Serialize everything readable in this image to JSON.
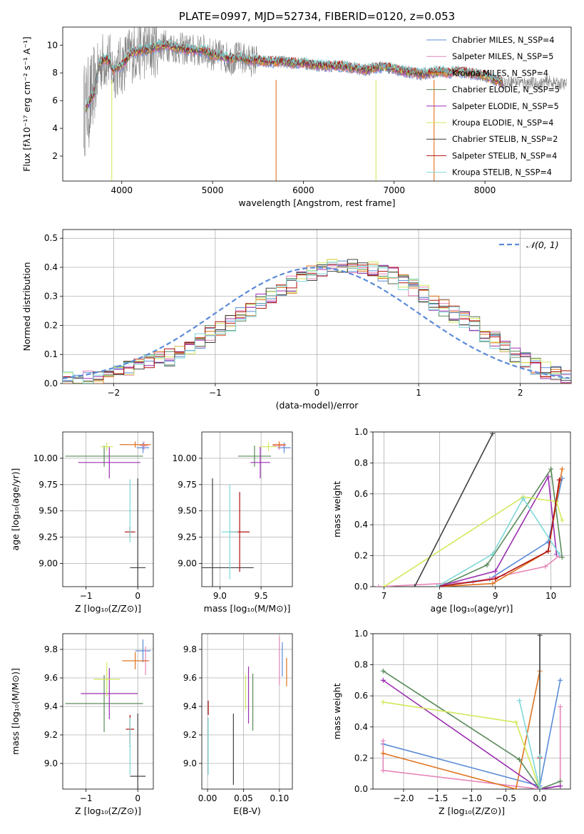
{
  "colors": {
    "chabrier_miles": "#5b8bd8",
    "salpeter_miles": "#e585b8",
    "kroupa_miles": "#e0731f",
    "chabrier_elodie": "#5a8a5a",
    "salpeter_elodie": "#9b2fb0",
    "kroupa_elodie": "#d3e85a",
    "chabrier_stelib": "#404040",
    "salpeter_stelib": "#b01010",
    "kroupa_stelib": "#7fd8d8",
    "raw_spectrum": "#808080",
    "normal_curve": "#5b8bd8"
  },
  "chart_data": [
    {
      "panel": "spectrum",
      "type": "line",
      "title": "PLATE=0997, MJD=52734, FIBERID=0120, z=0.053",
      "xlabel": "wavelength [Angstrom, rest frame]",
      "ylabel": "Flux [fλ10⁻¹⁷ erg cm⁻² s⁻¹ A⁻¹]",
      "xlim": [
        3350,
        8950
      ],
      "ylim": [
        0.2,
        11.3
      ],
      "xticks": [
        "4000",
        "5000",
        "6000",
        "7000",
        "8000"
      ],
      "yticks": [
        "2",
        "4",
        "6",
        "8",
        "10"
      ],
      "legend_position": "top-right",
      "legend": [
        "Chabrier MILES, N_SSP=4",
        "Salpeter MILES, N_SSP=5",
        "Kroupa MILES, N_SSP=4",
        "Chabrier ELODIE, N_SSP=5",
        "Salpeter ELODIE, N_SSP=5",
        "Kroupa ELODIE, N_SSP=4",
        "Chabrier STELIB, N_SSP=2",
        "Salpeter STELIB, N_SSP=4",
        "Kroupa STELIB, N_SSP=4"
      ],
      "model_x": [
        3600,
        3650,
        3700,
        3750,
        3800,
        3850,
        3900,
        4000,
        4100,
        4200,
        4300,
        4400,
        4500,
        4600,
        4700,
        4800,
        4900,
        5000,
        5100,
        5200,
        5300,
        5400,
        5500,
        5600,
        5700,
        5800,
        5900,
        6000,
        6100,
        6200,
        6300,
        6400,
        6500,
        6600,
        6700,
        6800,
        6900,
        7000,
        7100,
        7200,
        7300,
        7400,
        7500,
        7600,
        7700,
        7800,
        7900,
        8000,
        8100,
        8200,
        8300,
        8400,
        8500,
        8600,
        8700,
        8800
      ],
      "model_y": [
        5.4,
        6.0,
        6.6,
        8.6,
        8.9,
        9.0,
        8.2,
        8.5,
        9.4,
        9.6,
        9.7,
        9.9,
        10.0,
        9.8,
        9.7,
        9.6,
        9.6,
        9.3,
        9.2,
        9.0,
        9.1,
        8.9,
        8.9,
        8.8,
        8.8,
        8.8,
        8.7,
        8.7,
        8.6,
        8.5,
        8.5,
        8.5,
        8.4,
        8.3,
        8.2,
        8.4,
        8.4,
        8.3,
        8.1,
        8.0,
        7.9,
        8.0,
        8.1,
        8.0,
        8.1,
        8.0,
        7.9,
        7.8,
        7.5,
        7.3,
        7.4,
        7.3,
        7.3,
        7.2,
        7.4,
        7.2
      ]
    },
    {
      "panel": "residual-histogram",
      "type": "line",
      "xlabel": "(data-model)/error",
      "ylabel": "Normed distribution",
      "xlim": [
        -2.5,
        2.5
      ],
      "ylim": [
        0,
        0.53
      ],
      "xticks": [
        "−2",
        "−1",
        "0",
        "1",
        "2"
      ],
      "yticks": [
        "0.0",
        "0.1",
        "0.2",
        "0.3",
        "0.4",
        "0.5"
      ],
      "legend_position": "top-right",
      "legend": [
        "𝒩(0, 1)"
      ],
      "bin_width": 0.1,
      "bin_start": -2.5,
      "mean_histogram": [
        0.01,
        0.01,
        0.015,
        0.02,
        0.03,
        0.04,
        0.05,
        0.06,
        0.07,
        0.08,
        0.09,
        0.11,
        0.13,
        0.15,
        0.17,
        0.19,
        0.21,
        0.24,
        0.26,
        0.28,
        0.3,
        0.32,
        0.34,
        0.36,
        0.38,
        0.4,
        0.4,
        0.41,
        0.41,
        0.4,
        0.39,
        0.38,
        0.37,
        0.35,
        0.33,
        0.31,
        0.28,
        0.26,
        0.24,
        0.22,
        0.2,
        0.17,
        0.15,
        0.12,
        0.1,
        0.08,
        0.06,
        0.045,
        0.035,
        0.025
      ]
    },
    {
      "panel": "z-vs-age",
      "type": "scatter",
      "xlabel": "Z [log₁₀(Z/Z⊙)]",
      "ylabel": "age  [log₁₀(age/yr)]",
      "xlim": [
        -1.45,
        0.3
      ],
      "ylim": [
        8.78,
        10.25
      ],
      "xticks": [
        "−1",
        "0"
      ],
      "yticks": [
        "9.00",
        "9.25",
        "9.50",
        "9.75",
        "10.00"
      ],
      "points": [
        {
          "model": "chabrier_miles",
          "x": 0.1,
          "y": 10.1,
          "xerr": 0.12,
          "yerr": 0.05
        },
        {
          "model": "salpeter_miles",
          "x": 0.12,
          "y": 10.12,
          "xerr": 0.08,
          "yerr": 0.04
        },
        {
          "model": "kroupa_miles",
          "x": -0.05,
          "y": 10.13,
          "xerr": 0.3,
          "yerr": 0.03
        },
        {
          "model": "chabrier_elodie",
          "x": -0.65,
          "y": 10.02,
          "xerr": 0.75,
          "yerr": 0.1
        },
        {
          "model": "salpeter_elodie",
          "x": -0.55,
          "y": 9.96,
          "xerr": 0.6,
          "yerr": 0.15
        },
        {
          "model": "kroupa_elodie",
          "x": -0.6,
          "y": 10.11,
          "xerr": 0.12,
          "yerr": 0.04
        },
        {
          "model": "chabrier_stelib",
          "x": 0.0,
          "y": 8.96,
          "xerr": 0.15,
          "yerr": 0.85
        },
        {
          "model": "salpeter_stelib",
          "x": -0.15,
          "y": 9.3,
          "xerr": 0.1,
          "yerr": 0.05
        },
        {
          "model": "kroupa_stelib",
          "x": -0.15,
          "y": 9.5,
          "xerr": 0.02,
          "yerr": 0.3
        }
      ]
    },
    {
      "panel": "mass-vs-age",
      "type": "scatter",
      "xlabel": "mass [log₁₀(M/M⊙)]",
      "ylabel": "",
      "xlim": [
        8.78,
        9.88
      ],
      "ylim": [
        8.78,
        10.25
      ],
      "xticks": [
        "9.0",
        "9.5"
      ],
      "yticks": [
        "9.00",
        "9.25",
        "9.50",
        "9.75",
        "10.00"
      ],
      "points": [
        {
          "model": "chabrier_miles",
          "x": 9.78,
          "y": 10.1,
          "xerr": 0.08,
          "yerr": 0.05
        },
        {
          "model": "salpeter_miles",
          "x": 9.72,
          "y": 10.12,
          "xerr": 0.08,
          "yerr": 0.04
        },
        {
          "model": "kroupa_miles",
          "x": 9.72,
          "y": 10.13,
          "xerr": 0.08,
          "yerr": 0.03
        },
        {
          "model": "chabrier_elodie",
          "x": 9.42,
          "y": 10.02,
          "xerr": 0.2,
          "yerr": 0.1
        },
        {
          "model": "salpeter_elodie",
          "x": 9.49,
          "y": 9.96,
          "xerr": 0.12,
          "yerr": 0.15
        },
        {
          "model": "kroupa_elodie",
          "x": 9.59,
          "y": 10.11,
          "xerr": 0.1,
          "yerr": 0.04
        },
        {
          "model": "chabrier_stelib",
          "x": 8.91,
          "y": 8.96,
          "xerr": 0.5,
          "yerr": 0.85
        },
        {
          "model": "salpeter_stelib",
          "x": 9.24,
          "y": 9.3,
          "xerr": 0.12,
          "yerr": 0.38
        },
        {
          "model": "kroupa_stelib",
          "x": 9.12,
          "y": 9.3,
          "xerr": 0.1,
          "yerr": 0.45
        }
      ]
    },
    {
      "panel": "age-vs-weight",
      "type": "line",
      "xlabel": "age  [log₁₀(age/yr)]",
      "ylabel": "mass weight",
      "xlim": [
        6.8,
        10.35
      ],
      "ylim": [
        0,
        1
      ],
      "xticks": [
        "7",
        "8",
        "9",
        "10"
      ],
      "yticks": [
        "0.0",
        "0.2",
        "0.4",
        "0.6",
        "0.8",
        "1.0"
      ],
      "series": [
        {
          "model": "chabrier_miles",
          "x": [
            7.95,
            8.9,
            9.95,
            10.2
          ],
          "y": [
            0.0,
            0.05,
            0.29,
            0.7
          ]
        },
        {
          "model": "salpeter_miles",
          "x": [
            6.9,
            8.6,
            9.9,
            10.15
          ],
          "y": [
            0.0,
            0.03,
            0.13,
            0.2
          ]
        },
        {
          "model": "kroupa_miles",
          "x": [
            7.95,
            8.95,
            9.95,
            10.2
          ],
          "y": [
            0.0,
            0.02,
            0.23,
            0.76
          ]
        },
        {
          "model": "chabrier_elodie",
          "x": [
            8.0,
            8.85,
            10.0,
            10.2
          ],
          "y": [
            0.0,
            0.14,
            0.76,
            0.19
          ]
        },
        {
          "model": "salpeter_elodie",
          "x": [
            7.95,
            9.0,
            9.95,
            10.1
          ],
          "y": [
            0.0,
            0.1,
            0.71,
            0.21
          ]
        },
        {
          "model": "kroupa_elodie",
          "x": [
            7.0,
            9.5,
            10.1,
            10.2
          ],
          "y": [
            0.0,
            0.58,
            0.55,
            0.43
          ]
        },
        {
          "model": "chabrier_stelib",
          "x": [
            7.55,
            8.95
          ],
          "y": [
            0.0,
            0.99
          ]
        },
        {
          "model": "salpeter_stelib",
          "x": [
            7.95,
            9.0,
            9.95,
            10.15
          ],
          "y": [
            0.0,
            0.05,
            0.23,
            0.69
          ]
        },
        {
          "model": "kroupa_stelib",
          "x": [
            7.95,
            8.95,
            9.5,
            10.15
          ],
          "y": [
            0.0,
            0.21,
            0.57,
            0.21
          ]
        }
      ]
    },
    {
      "panel": "z-vs-mass",
      "type": "scatter",
      "xlabel": "Z [log₁₀(Z/Z⊙)]",
      "ylabel": "mass [log₁₀(M/M⊙)]",
      "xlim": [
        -1.45,
        0.3
      ],
      "ylim": [
        8.82,
        9.91
      ],
      "xticks": [
        "−1",
        "0"
      ],
      "yticks": [
        "9.0",
        "9.2",
        "9.4",
        "9.6",
        "9.8"
      ],
      "points": [
        {
          "model": "chabrier_miles",
          "x": 0.1,
          "y": 9.79,
          "xerr": 0.15,
          "yerr": 0.08
        },
        {
          "model": "salpeter_miles",
          "x": 0.15,
          "y": 9.72,
          "xerr": 0.08,
          "yerr": 0.1
        },
        {
          "model": "kroupa_miles",
          "x": -0.05,
          "y": 9.72,
          "xerr": 0.25,
          "yerr": 0.06
        },
        {
          "model": "chabrier_elodie",
          "x": -0.65,
          "y": 9.42,
          "xerr": 0.75,
          "yerr": 0.2
        },
        {
          "model": "salpeter_elodie",
          "x": -0.55,
          "y": 9.49,
          "xerr": 0.55,
          "yerr": 0.18
        },
        {
          "model": "kroupa_elodie",
          "x": -0.6,
          "y": 9.59,
          "xerr": 0.25,
          "yerr": 0.12
        },
        {
          "model": "chabrier_stelib",
          "x": 0.0,
          "y": 8.91,
          "xerr": 0.15,
          "yerr": 0.44
        },
        {
          "model": "salpeter_stelib",
          "x": -0.15,
          "y": 9.24,
          "xerr": 0.08,
          "yerr": 0.1
        },
        {
          "model": "kroupa_stelib",
          "x": -0.15,
          "y": 9.12,
          "xerr": 0.02,
          "yerr": 0.2
        }
      ]
    },
    {
      "panel": "ebv-vs-mass",
      "type": "scatter",
      "xlabel": "E(B-V)",
      "ylabel": "",
      "xlim": [
        -0.008,
        0.118
      ],
      "ylim": [
        8.82,
        9.91
      ],
      "xticks": [
        "0.00",
        "0.05",
        "0.10"
      ],
      "yticks": [
        "9.0",
        "9.2",
        "9.4",
        "9.6",
        "9.8"
      ],
      "points": [
        {
          "model": "chabrier_miles",
          "x": 0.104,
          "y": 9.73,
          "xerr": 0.0,
          "yerr": 0.12
        },
        {
          "model": "salpeter_miles",
          "x": 0.1,
          "y": 9.72,
          "xerr": 0.0,
          "yerr": 0.17
        },
        {
          "model": "kroupa_miles",
          "x": 0.11,
          "y": 9.64,
          "xerr": 0.0,
          "yerr": 0.1
        },
        {
          "model": "chabrier_elodie",
          "x": 0.063,
          "y": 9.43,
          "xerr": 0.0,
          "yerr": 0.2
        },
        {
          "model": "salpeter_elodie",
          "x": 0.057,
          "y": 9.48,
          "xerr": 0.0,
          "yerr": 0.2
        },
        {
          "model": "kroupa_elodie",
          "x": 0.053,
          "y": 9.5,
          "xerr": 0.0,
          "yerr": 0.12
        },
        {
          "model": "chabrier_stelib",
          "x": 0.036,
          "y": 9.1,
          "xerr": 0.0,
          "yerr": 0.25
        },
        {
          "model": "salpeter_stelib",
          "x": 0.001,
          "y": 9.39,
          "xerr": 0.0,
          "yerr": 0.05
        },
        {
          "model": "kroupa_stelib",
          "x": 0.001,
          "y": 9.12,
          "xerr": 0.0,
          "yerr": 0.2
        }
      ]
    },
    {
      "panel": "z-vs-weight",
      "type": "line",
      "xlabel": "Z [log₁₀(Z/Z⊙)]",
      "ylabel": "mass weight",
      "xlim": [
        -2.45,
        0.45
      ],
      "ylim": [
        0,
        1
      ],
      "xticks": [
        "−2.0",
        "−1.5",
        "−1.0",
        "−0.5",
        "0.0"
      ],
      "yticks": [
        "0.0",
        "0.2",
        "0.4",
        "0.6",
        "0.8",
        "1.0"
      ],
      "series": [
        {
          "model": "chabrier_miles",
          "x": [
            -2.3,
            0.0,
            0.3
          ],
          "y": [
            0.29,
            0.02,
            0.7
          ]
        },
        {
          "model": "salpeter_miles",
          "x": [
            -2.3,
            -2.3,
            0.0,
            0.3,
            0.3
          ],
          "y": [
            0.31,
            0.12,
            0.0,
            0.02,
            0.53
          ]
        },
        {
          "model": "kroupa_miles",
          "x": [
            -2.3,
            -0.35,
            0.0
          ],
          "y": [
            0.23,
            0.0,
            0.76
          ]
        },
        {
          "model": "chabrier_elodie",
          "x": [
            -2.3,
            -0.3,
            0.0,
            0.3
          ],
          "y": [
            0.76,
            0.19,
            0.0,
            0.05
          ]
        },
        {
          "model": "salpeter_elodie",
          "x": [
            -2.3,
            0.0,
            0.3
          ],
          "y": [
            0.7,
            0.0,
            0.02
          ]
        },
        {
          "model": "kroupa_elodie",
          "x": [
            -2.3,
            -0.35,
            0.0
          ],
          "y": [
            0.56,
            0.43,
            0.0
          ]
        },
        {
          "model": "chabrier_stelib",
          "x": [
            0.0,
            0.0
          ],
          "y": [
            0.0,
            0.99
          ]
        },
        {
          "model": "salpeter_stelib",
          "x": [
            0.0,
            0.0
          ],
          "y": [
            0.0,
            0.2
          ]
        },
        {
          "model": "kroupa_stelib",
          "x": [
            -0.3,
            0.0,
            0.0
          ],
          "y": [
            0.57,
            0.0,
            0.21
          ]
        }
      ]
    }
  ]
}
